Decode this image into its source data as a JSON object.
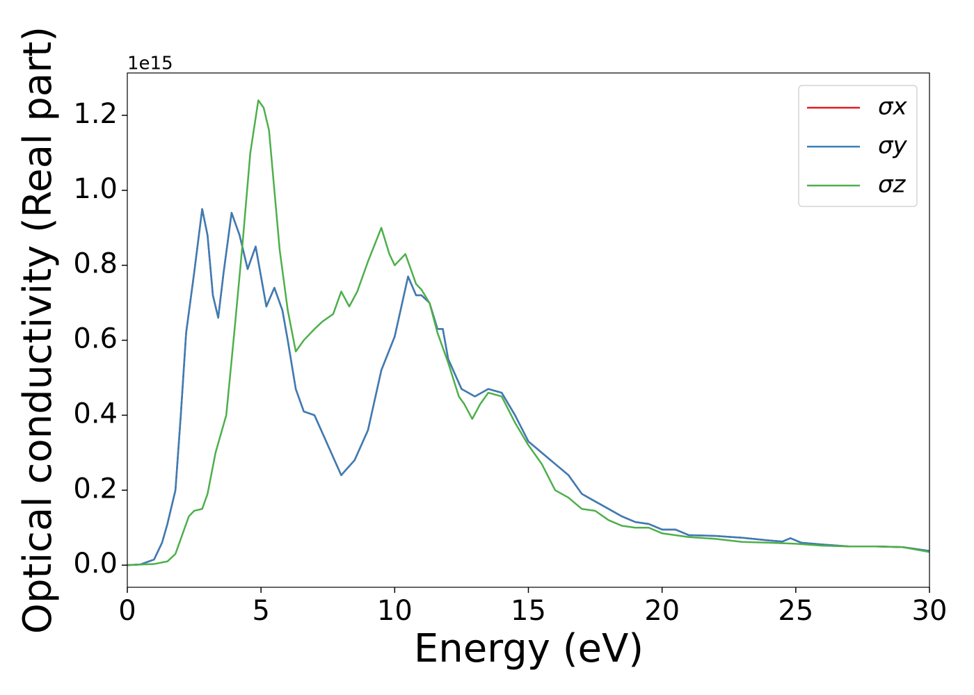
{
  "chart_data": {
    "type": "line",
    "x_label": "Energy (eV)",
    "y_label": "Optical conductivity (Real part)",
    "y_offset_label": "1e15",
    "xlim": [
      0,
      30
    ],
    "xticks": [
      0,
      5,
      10,
      15,
      20,
      25,
      30
    ],
    "ylim": [
      -0.059,
      1.313
    ],
    "yticks": [
      {
        "value": 0,
        "label": "0.0"
      },
      0.2,
      0.4,
      0.6,
      0.8,
      {
        "value": 1,
        "label": "1.0"
      },
      1.2
    ],
    "legend": "upper right",
    "series": [
      {
        "name": "σx",
        "color": "#e41a1c",
        "x": [
          0,
          0.5,
          1.0,
          1.3,
          1.5,
          1.8,
          2.0,
          2.2,
          2.5,
          2.8,
          3.0,
          3.2,
          3.4,
          3.6,
          3.9,
          4.2,
          4.5,
          4.8,
          5.0,
          5.2,
          5.5,
          5.8,
          6.0,
          6.3,
          6.6,
          7.0,
          7.5,
          8.0,
          8.5,
          9.0,
          9.5,
          10.0,
          10.5,
          10.8,
          11.0,
          11.3,
          11.6,
          11.8,
          12.0,
          12.5,
          13.0,
          13.5,
          14.0,
          14.5,
          15.0,
          15.5,
          16.0,
          16.5,
          17.0,
          17.5,
          18.0,
          18.5,
          19.0,
          19.5,
          20.0,
          20.5,
          21.0,
          22.0,
          23.0,
          24.0,
          24.5,
          24.8,
          25.2,
          26.0,
          27.0,
          28.0,
          29.0,
          30.0
        ],
        "values": [
          0,
          0.002,
          0.015,
          0.06,
          0.11,
          0.2,
          0.4,
          0.62,
          0.78,
          0.95,
          0.88,
          0.72,
          0.66,
          0.78,
          0.94,
          0.88,
          0.79,
          0.85,
          0.77,
          0.69,
          0.74,
          0.68,
          0.6,
          0.47,
          0.41,
          0.4,
          0.32,
          0.24,
          0.28,
          0.36,
          0.52,
          0.61,
          0.77,
          0.72,
          0.72,
          0.7,
          0.63,
          0.63,
          0.55,
          0.47,
          0.45,
          0.47,
          0.46,
          0.4,
          0.33,
          0.3,
          0.27,
          0.24,
          0.19,
          0.17,
          0.15,
          0.13,
          0.115,
          0.11,
          0.095,
          0.095,
          0.08,
          0.078,
          0.073,
          0.066,
          0.063,
          0.072,
          0.06,
          0.055,
          0.05,
          0.05,
          0.048,
          0.038
        ]
      },
      {
        "name": "σy",
        "color": "#377eb8",
        "x": [
          0,
          0.5,
          1.0,
          1.3,
          1.5,
          1.8,
          2.0,
          2.2,
          2.5,
          2.8,
          3.0,
          3.2,
          3.4,
          3.6,
          3.9,
          4.2,
          4.5,
          4.8,
          5.0,
          5.2,
          5.5,
          5.8,
          6.0,
          6.3,
          6.6,
          7.0,
          7.5,
          8.0,
          8.5,
          9.0,
          9.5,
          10.0,
          10.5,
          10.8,
          11.0,
          11.3,
          11.6,
          11.8,
          12.0,
          12.5,
          13.0,
          13.5,
          14.0,
          14.5,
          15.0,
          15.5,
          16.0,
          16.5,
          17.0,
          17.5,
          18.0,
          18.5,
          19.0,
          19.5,
          20.0,
          20.5,
          21.0,
          22.0,
          23.0,
          24.0,
          24.5,
          24.8,
          25.2,
          26.0,
          27.0,
          28.0,
          29.0,
          30.0
        ],
        "values": [
          0,
          0.002,
          0.015,
          0.06,
          0.11,
          0.2,
          0.4,
          0.62,
          0.78,
          0.95,
          0.88,
          0.72,
          0.66,
          0.78,
          0.94,
          0.88,
          0.79,
          0.85,
          0.77,
          0.69,
          0.74,
          0.68,
          0.6,
          0.47,
          0.41,
          0.4,
          0.32,
          0.24,
          0.28,
          0.36,
          0.52,
          0.61,
          0.77,
          0.72,
          0.72,
          0.7,
          0.63,
          0.63,
          0.55,
          0.47,
          0.45,
          0.47,
          0.46,
          0.4,
          0.33,
          0.3,
          0.27,
          0.24,
          0.19,
          0.17,
          0.15,
          0.13,
          0.115,
          0.11,
          0.095,
          0.095,
          0.08,
          0.078,
          0.073,
          0.066,
          0.063,
          0.072,
          0.06,
          0.055,
          0.05,
          0.05,
          0.048,
          0.038
        ]
      },
      {
        "name": "σz",
        "color": "#4daf4a",
        "x": [
          0,
          1.0,
          1.5,
          1.8,
          2.0,
          2.3,
          2.5,
          2.8,
          3.0,
          3.3,
          3.5,
          3.7,
          4.0,
          4.3,
          4.6,
          4.9,
          5.1,
          5.3,
          5.5,
          5.7,
          6.0,
          6.3,
          6.6,
          7.0,
          7.3,
          7.7,
          8.0,
          8.3,
          8.6,
          9.0,
          9.5,
          9.8,
          10.0,
          10.4,
          10.8,
          11.0,
          11.3,
          11.6,
          12.0,
          12.4,
          12.6,
          12.9,
          13.2,
          13.5,
          14.0,
          14.5,
          15.0,
          15.5,
          16.0,
          16.5,
          17.0,
          17.5,
          18.0,
          18.5,
          19.0,
          19.5,
          20.0,
          21.0,
          22.0,
          23.0,
          24.0,
          25.0,
          26.0,
          27.0,
          28.0,
          29.0,
          30.0
        ],
        "values": [
          0,
          0.003,
          0.01,
          0.03,
          0.07,
          0.13,
          0.145,
          0.15,
          0.19,
          0.3,
          0.35,
          0.4,
          0.62,
          0.85,
          1.1,
          1.24,
          1.22,
          1.16,
          1.0,
          0.84,
          0.68,
          0.57,
          0.6,
          0.63,
          0.65,
          0.67,
          0.73,
          0.69,
          0.73,
          0.81,
          0.9,
          0.83,
          0.8,
          0.83,
          0.75,
          0.735,
          0.7,
          0.62,
          0.54,
          0.45,
          0.43,
          0.39,
          0.43,
          0.46,
          0.45,
          0.38,
          0.32,
          0.27,
          0.2,
          0.18,
          0.15,
          0.145,
          0.12,
          0.105,
          0.1,
          0.1,
          0.085,
          0.075,
          0.07,
          0.062,
          0.06,
          0.057,
          0.052,
          0.05,
          0.05,
          0.048,
          0.035
        ]
      }
    ]
  }
}
